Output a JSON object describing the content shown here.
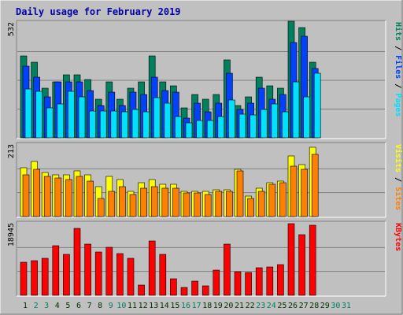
{
  "chart_data": {
    "type": "bar",
    "title": "Daily usage for February 2019",
    "colors": {
      "background": "#C0C0C0",
      "title": "#0000AA",
      "hits": "#00805C",
      "files": "#0040FF",
      "pages": "#00E0FF",
      "visits": "#FFFF00",
      "sites": "#FF8000",
      "kbytes": "#FF0000",
      "weekday_label": "#003000",
      "weekend_label": "#00805C"
    },
    "categories": [
      "1",
      "2",
      "3",
      "4",
      "5",
      "6",
      "7",
      "8",
      "9",
      "10",
      "11",
      "12",
      "13",
      "14",
      "15",
      "16",
      "17",
      "18",
      "19",
      "20",
      "21",
      "22",
      "23",
      "24",
      "25",
      "26",
      "27",
      "28",
      "29",
      "30",
      "31"
    ],
    "weekend_days": [
      "2",
      "3",
      "9",
      "10",
      "16",
      "17",
      "23",
      "24",
      "30",
      "31"
    ],
    "panels": [
      {
        "id": "hits-files-pages",
        "max_label": "532",
        "ymax": 532,
        "legend": [
          "Pages",
          "Files",
          "Hits"
        ],
        "series": [
          {
            "name": "Hits",
            "values": [
              380,
              350,
              230,
              260,
              290,
              290,
              270,
              180,
              260,
              180,
              230,
              260,
              380,
              260,
              240,
              140,
              200,
              180,
              200,
              360,
              150,
              190,
              280,
              240,
              230,
              540,
              510,
              350,
              0,
              0,
              0
            ]
          },
          {
            "name": "Files",
            "values": [
              330,
              280,
              190,
              260,
              260,
              260,
              220,
              150,
              210,
              150,
              210,
              200,
              280,
              220,
              210,
              90,
              160,
              120,
              160,
              300,
              130,
              160,
              230,
              180,
              200,
              440,
              470,
              320,
              0,
              0,
              0
            ]
          },
          {
            "name": "Pages",
            "values": [
              225,
              215,
              140,
              155,
              215,
              190,
              125,
              125,
              125,
              120,
              130,
              120,
              185,
              160,
              100,
              70,
              80,
              80,
              100,
              175,
              110,
              105,
              130,
              155,
              120,
              260,
              190,
              300,
              0,
              0,
              0
            ]
          }
        ]
      },
      {
        "id": "visits-sites",
        "max_label": "213",
        "ymax": 213,
        "legend": [
          "Sites",
          "Visits"
        ],
        "series": [
          {
            "name": "Visits",
            "values": [
              145,
              165,
              130,
              125,
              125,
              135,
              125,
              90,
              120,
              110,
              75,
              100,
              110,
              95,
              95,
              75,
              75,
              75,
              80,
              80,
              140,
              60,
              85,
              100,
              105,
              180,
              155,
              205,
              0,
              0,
              0
            ]
          },
          {
            "name": "Sites",
            "values": [
              125,
              140,
              120,
              115,
              110,
              120,
              105,
              55,
              75,
              90,
              65,
              85,
              90,
              85,
              85,
              70,
              70,
              65,
              75,
              75,
              135,
              55,
              75,
              95,
              100,
              150,
              140,
              185,
              0,
              0,
              0
            ]
          }
        ]
      },
      {
        "id": "kbytes",
        "max_label": "18945",
        "ymax": 18945,
        "legend": [
          "KBytes"
        ],
        "series": [
          {
            "name": "KBytes",
            "values": [
              8700,
              9200,
              9800,
              13200,
              10900,
              17700,
              13500,
              11500,
              12700,
              11100,
              9700,
              2800,
              14300,
              10800,
              4400,
              2000,
              3700,
              2400,
              6700,
              13500,
              6200,
              6000,
              7200,
              7500,
              8100,
              18900,
              16000,
              18600,
              0,
              0,
              0
            ]
          }
        ]
      }
    ]
  }
}
